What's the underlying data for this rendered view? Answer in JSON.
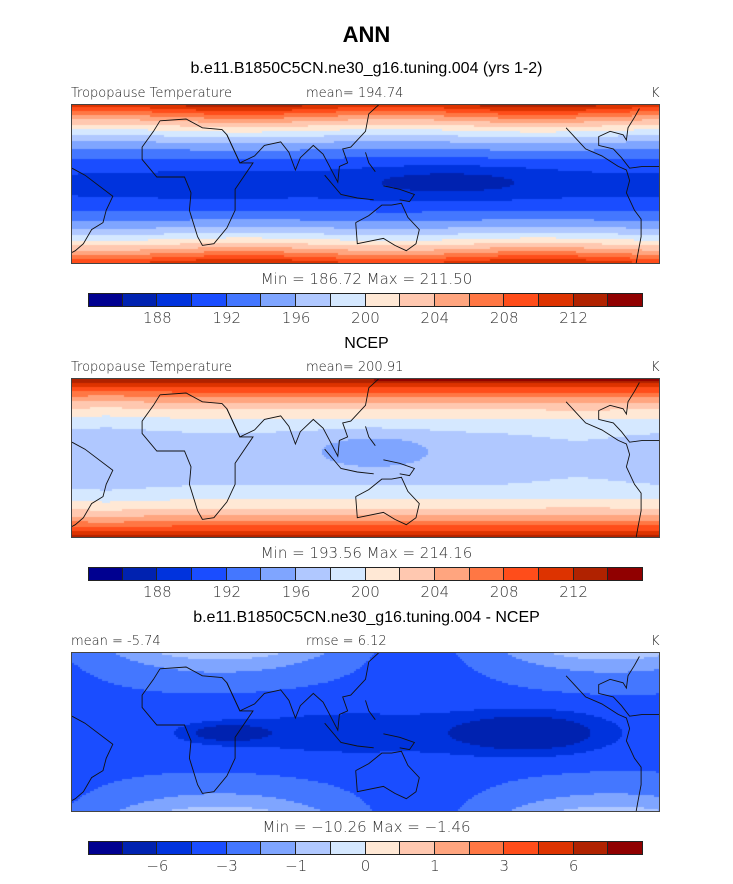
{
  "title": "ANN",
  "colors": [
    "#000090",
    "#0022b0",
    "#0033dd",
    "#1a4dff",
    "#4477ff",
    "#7fa5ff",
    "#b0c8ff",
    "#d5e8ff",
    "#ffe8d5",
    "#ffc8b0",
    "#ffa57f",
    "#ff7744",
    "#ff4d1a",
    "#dd3300",
    "#b02200",
    "#900000"
  ],
  "chart_data": [
    {
      "type": "heatmap",
      "title": "b.e11.B1850C5CN.ne30_g16.tuning.004 (yrs 1-2)",
      "left_label": "Tropopause Temperature",
      "center_label": "mean= 194.74",
      "units": "K",
      "min_max": "Min = 186.72 Max = 211.50",
      "levels": [
        186,
        188,
        190,
        192,
        194,
        196,
        198,
        200,
        202,
        204,
        206,
        208,
        210,
        212,
        214
      ],
      "tick_labels": [
        "188",
        "192",
        "196",
        "200",
        "204",
        "208",
        "212"
      ]
    },
    {
      "type": "heatmap",
      "title": "NCEP",
      "left_label": "Tropopause Temperature",
      "center_label": "mean= 200.91",
      "units": "K",
      "min_max": "Min = 193.56 Max = 214.16",
      "levels": [
        186,
        188,
        190,
        192,
        194,
        196,
        198,
        200,
        202,
        204,
        206,
        208,
        210,
        212,
        214
      ],
      "tick_labels": [
        "188",
        "192",
        "196",
        "200",
        "204",
        "208",
        "212"
      ]
    },
    {
      "type": "heatmap",
      "title": "b.e11.B1850C5CN.ne30_g16.tuning.004 - NCEP",
      "left_label": "mean =   -5.74",
      "center_label": "rmse =    6.12",
      "units": "K",
      "min_max": "Min = −10.26 Max =  −1.46",
      "levels": [
        -8,
        -6,
        -5,
        -4,
        -3,
        -2,
        -1,
        -0.5,
        0,
        0.5,
        1,
        2,
        3,
        4,
        6
      ],
      "tick_labels": [
        "−6",
        "−3",
        "−1",
        "0",
        "1",
        "3",
        "6"
      ]
    }
  ]
}
